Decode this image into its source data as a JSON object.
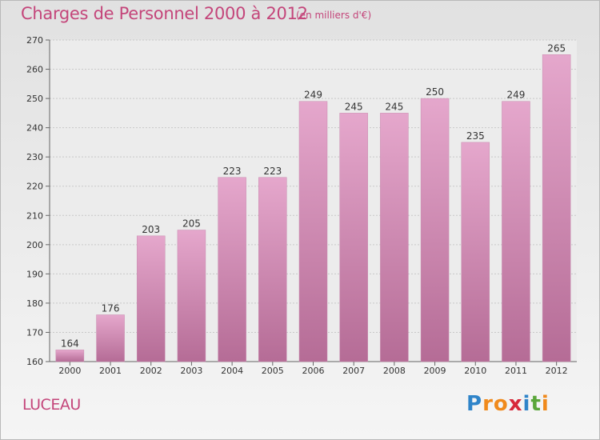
{
  "header": {
    "title": "Charges de Personnel 2000 à 2012",
    "subtitle": "(en milliers d'€)"
  },
  "place": "LUCEAU",
  "logo": {
    "letters": [
      "P",
      "r",
      "o",
      "x",
      "i",
      "t",
      "i"
    ],
    "colors": [
      "#2f84c9",
      "#f08a1c",
      "#f08a1c",
      "#d7293a",
      "#2f84c9",
      "#5aa63a",
      "#f08a1c"
    ]
  },
  "colors": {
    "bar_top": "#e5a7cc",
    "bar_bottom": "#b56c96",
    "accent": "#c4457a"
  },
  "chart_data": {
    "type": "bar",
    "categories": [
      "2000",
      "2001",
      "2002",
      "2003",
      "2004",
      "2005",
      "2006",
      "2007",
      "2008",
      "2009",
      "2010",
      "2011",
      "2012"
    ],
    "values": [
      164,
      176,
      203,
      205,
      223,
      223,
      249,
      245,
      245,
      250,
      235,
      249,
      265
    ],
    "data_labels": [
      "164",
      "176",
      "203",
      "205",
      "223",
      "223",
      "249",
      "245",
      "245",
      "250",
      "235",
      "249",
      "265"
    ],
    "title": "Charges de Personnel 2000 à 2012",
    "subtitle": "(en milliers d'€)",
    "ylim": [
      160,
      270
    ],
    "yticks": [
      160,
      170,
      180,
      190,
      200,
      210,
      220,
      230,
      240,
      250,
      260,
      270
    ],
    "grid": true,
    "legend": "none"
  }
}
